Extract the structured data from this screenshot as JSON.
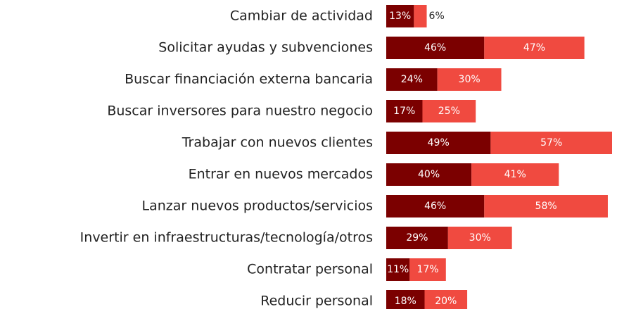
{
  "chart_data": {
    "type": "stacked-bar-horizontal",
    "categories": [
      "Cambiar de actividad",
      "Solicitar ayudas y subvenciones",
      "Buscar financiación externa bancaria",
      "Buscar inversores para nuestro negocio",
      "Trabajar con nuevos clientes",
      "Entrar en nuevos mercados",
      "Lanzar nuevos productos/servicios",
      "Invertir en infraestructuras/tecnología/otros",
      "Contratar personal",
      "Reducir personal"
    ],
    "series": [
      {
        "color": "#7b0000",
        "values": [
          13,
          46,
          24,
          17,
          49,
          40,
          46,
          29,
          11,
          18
        ],
        "value_labels": [
          "13%",
          "46%",
          "24%",
          "17%",
          "49%",
          "40%",
          "46%",
          "29%",
          "11%",
          "18%"
        ]
      },
      {
        "color": "#f04a40",
        "values": [
          6,
          47,
          30,
          25,
          57,
          41,
          58,
          30,
          17,
          20
        ],
        "value_labels": [
          "6%",
          "47%",
          "30%",
          "25%",
          "57%",
          "41%",
          "58%",
          "30%",
          "17%",
          "20%"
        ]
      }
    ]
  }
}
